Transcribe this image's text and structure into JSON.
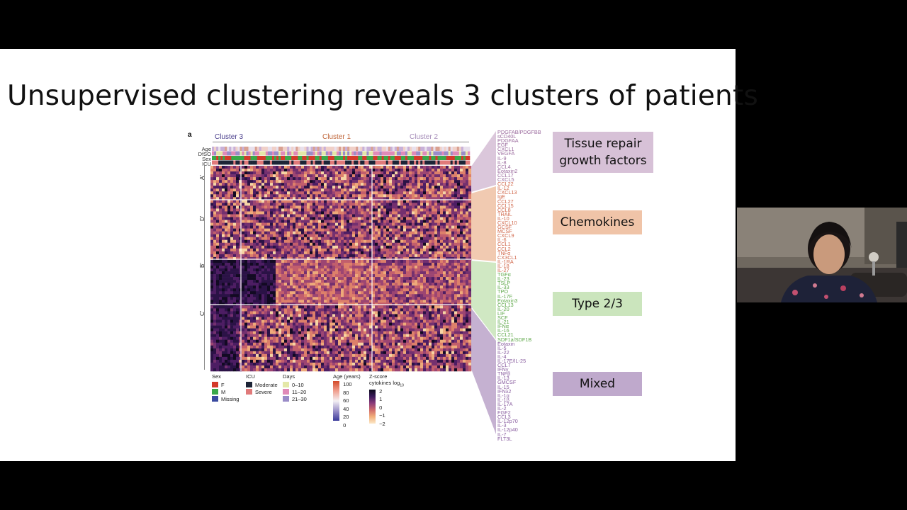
{
  "slide": {
    "title": "Unsupervised clustering reveals 3 clusters of patients",
    "panel_letter": "a"
  },
  "figure": {
    "clusters": [
      {
        "label": "Cluster 3",
        "color": "#4a3e8c"
      },
      {
        "label": "Cluster 1",
        "color": "#c0663a"
      },
      {
        "label": "Cluster 2",
        "color": "#a58cb8"
      }
    ],
    "tracks": [
      "Age",
      "DfSO",
      "Sex",
      "ICU"
    ],
    "row_groups": [
      "A'",
      "D'",
      "B'",
      "C'"
    ],
    "legend": {
      "sex": {
        "title": "Sex",
        "items": [
          {
            "label": "F",
            "color": "#d43a2a"
          },
          {
            "label": "M",
            "color": "#3aa84a"
          },
          {
            "label": "Missing",
            "color": "#3a4aa0"
          }
        ]
      },
      "icu": {
        "title": "ICU",
        "items": [
          {
            "label": "Moderate",
            "color": "#1c2436"
          },
          {
            "label": "Severe",
            "color": "#e07a7a"
          }
        ]
      },
      "days": {
        "title": "Days",
        "items": [
          {
            "label": "0–10",
            "color": "#e4e8a8"
          },
          {
            "label": "11–20",
            "color": "#e08ab8"
          },
          {
            "label": "21–30",
            "color": "#9a8cc8"
          }
        ]
      },
      "age": {
        "title": "Age (years)",
        "ticks": [
          "100",
          "80",
          "60",
          "40",
          "20",
          "0"
        ]
      },
      "zscore": {
        "title": "Z-score",
        "subtitle": "cytokines log",
        "subscript": "10",
        "ticks": [
          "2",
          "1",
          "0",
          "−1",
          "−2"
        ]
      }
    },
    "cytokine_groups": [
      {
        "color": "#9b6b9e",
        "names": [
          "PDGFAB/PDGFBB",
          "sCD40L",
          "PDGFAA",
          "EGF",
          "CXCL1",
          "VEGFA",
          "IL-9",
          "IL-8",
          "CCL4",
          "Eotaxin2",
          "CCL17",
          "CXCL5"
        ]
      },
      {
        "color": "#d0674a",
        "names": [
          "CCL22",
          "IL-12",
          "CXCL13",
          "IgE",
          "CCL27",
          "CCL15",
          "CCL8",
          "TRAIL",
          "IL-10",
          "CXCL10",
          "GCSF",
          "MCSF",
          "CXCL9",
          "IL-6",
          "CCL1",
          "CCL2",
          "TNFα",
          "CX3CL1",
          "IL-1RA",
          "IL-18",
          "IL-27"
        ]
      },
      {
        "color": "#5fa84a",
        "names": [
          "TGFα",
          "IL-23",
          "TSLP",
          "IL-33",
          "TPO",
          "IL-17F",
          "Eotaxin3",
          "CCL13",
          "IL-20",
          "LIF",
          "SCF",
          "IL-21",
          "IFNα",
          "IL-16",
          "CCL21",
          "SDF1a/SDF1B"
        ]
      },
      {
        "color": "#8a5fa0",
        "names": [
          "Eotaxin",
          "IL-5",
          "IL-22",
          "IL-4",
          "IL-17E/IL-25",
          "CCL7",
          "IFNγ",
          "TNFβ",
          "IL-13",
          "GMCSF",
          "IL-15",
          "IFNλ2",
          "IL-1α",
          "IL-1β",
          "IL-17A",
          "IL-2",
          "FGF2",
          "CCL3",
          "IL-12p70",
          "IL-3",
          "IL-12p40",
          "IL-7",
          "FLT3L"
        ]
      }
    ],
    "categories": [
      {
        "label": "Tissue repair growth factors",
        "color": "#d7c1d7"
      },
      {
        "label": "Chemokines",
        "color": "#f0c4a8"
      },
      {
        "label": "Type 2/3",
        "color": "#cbe5bd"
      },
      {
        "label": "Mixed",
        "color": "#bfa9cc"
      }
    ]
  }
}
